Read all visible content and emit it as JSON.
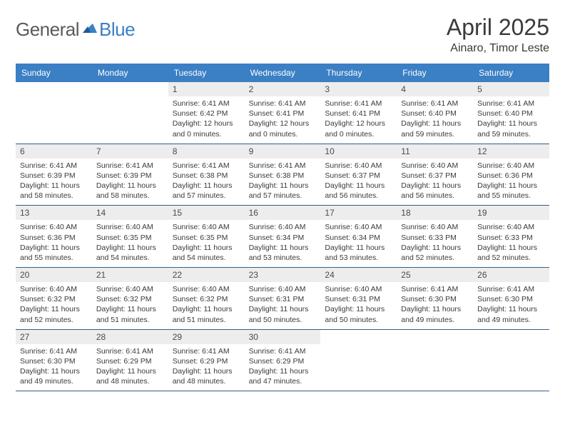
{
  "logo": {
    "general": "General",
    "blue": "Blue"
  },
  "title": "April 2025",
  "location": "Ainaro, Timor Leste",
  "colors": {
    "header_bg": "#3b7fc4",
    "header_text": "#ffffff",
    "daynum_bg": "#ededed",
    "text": "#3a3a3a",
    "week_divider": "#2f5f8f",
    "logo_gray": "#5a5a5a",
    "logo_blue": "#3b7fc4",
    "page_bg": "#ffffff"
  },
  "typography": {
    "title_fontsize": 32,
    "location_fontsize": 16,
    "dayname_fontsize": 12,
    "daynum_fontsize": 12,
    "cell_fontsize": 10.5
  },
  "daynames": [
    "Sunday",
    "Monday",
    "Tuesday",
    "Wednesday",
    "Thursday",
    "Friday",
    "Saturday"
  ],
  "weeks": [
    [
      null,
      null,
      {
        "n": "1",
        "sunrise": "Sunrise: 6:41 AM",
        "sunset": "Sunset: 6:42 PM",
        "daylight": "Daylight: 12 hours and 0 minutes."
      },
      {
        "n": "2",
        "sunrise": "Sunrise: 6:41 AM",
        "sunset": "Sunset: 6:41 PM",
        "daylight": "Daylight: 12 hours and 0 minutes."
      },
      {
        "n": "3",
        "sunrise": "Sunrise: 6:41 AM",
        "sunset": "Sunset: 6:41 PM",
        "daylight": "Daylight: 12 hours and 0 minutes."
      },
      {
        "n": "4",
        "sunrise": "Sunrise: 6:41 AM",
        "sunset": "Sunset: 6:40 PM",
        "daylight": "Daylight: 11 hours and 59 minutes."
      },
      {
        "n": "5",
        "sunrise": "Sunrise: 6:41 AM",
        "sunset": "Sunset: 6:40 PM",
        "daylight": "Daylight: 11 hours and 59 minutes."
      }
    ],
    [
      {
        "n": "6",
        "sunrise": "Sunrise: 6:41 AM",
        "sunset": "Sunset: 6:39 PM",
        "daylight": "Daylight: 11 hours and 58 minutes."
      },
      {
        "n": "7",
        "sunrise": "Sunrise: 6:41 AM",
        "sunset": "Sunset: 6:39 PM",
        "daylight": "Daylight: 11 hours and 58 minutes."
      },
      {
        "n": "8",
        "sunrise": "Sunrise: 6:41 AM",
        "sunset": "Sunset: 6:38 PM",
        "daylight": "Daylight: 11 hours and 57 minutes."
      },
      {
        "n": "9",
        "sunrise": "Sunrise: 6:41 AM",
        "sunset": "Sunset: 6:38 PM",
        "daylight": "Daylight: 11 hours and 57 minutes."
      },
      {
        "n": "10",
        "sunrise": "Sunrise: 6:40 AM",
        "sunset": "Sunset: 6:37 PM",
        "daylight": "Daylight: 11 hours and 56 minutes."
      },
      {
        "n": "11",
        "sunrise": "Sunrise: 6:40 AM",
        "sunset": "Sunset: 6:37 PM",
        "daylight": "Daylight: 11 hours and 56 minutes."
      },
      {
        "n": "12",
        "sunrise": "Sunrise: 6:40 AM",
        "sunset": "Sunset: 6:36 PM",
        "daylight": "Daylight: 11 hours and 55 minutes."
      }
    ],
    [
      {
        "n": "13",
        "sunrise": "Sunrise: 6:40 AM",
        "sunset": "Sunset: 6:36 PM",
        "daylight": "Daylight: 11 hours and 55 minutes."
      },
      {
        "n": "14",
        "sunrise": "Sunrise: 6:40 AM",
        "sunset": "Sunset: 6:35 PM",
        "daylight": "Daylight: 11 hours and 54 minutes."
      },
      {
        "n": "15",
        "sunrise": "Sunrise: 6:40 AM",
        "sunset": "Sunset: 6:35 PM",
        "daylight": "Daylight: 11 hours and 54 minutes."
      },
      {
        "n": "16",
        "sunrise": "Sunrise: 6:40 AM",
        "sunset": "Sunset: 6:34 PM",
        "daylight": "Daylight: 11 hours and 53 minutes."
      },
      {
        "n": "17",
        "sunrise": "Sunrise: 6:40 AM",
        "sunset": "Sunset: 6:34 PM",
        "daylight": "Daylight: 11 hours and 53 minutes."
      },
      {
        "n": "18",
        "sunrise": "Sunrise: 6:40 AM",
        "sunset": "Sunset: 6:33 PM",
        "daylight": "Daylight: 11 hours and 52 minutes."
      },
      {
        "n": "19",
        "sunrise": "Sunrise: 6:40 AM",
        "sunset": "Sunset: 6:33 PM",
        "daylight": "Daylight: 11 hours and 52 minutes."
      }
    ],
    [
      {
        "n": "20",
        "sunrise": "Sunrise: 6:40 AM",
        "sunset": "Sunset: 6:32 PM",
        "daylight": "Daylight: 11 hours and 52 minutes."
      },
      {
        "n": "21",
        "sunrise": "Sunrise: 6:40 AM",
        "sunset": "Sunset: 6:32 PM",
        "daylight": "Daylight: 11 hours and 51 minutes."
      },
      {
        "n": "22",
        "sunrise": "Sunrise: 6:40 AM",
        "sunset": "Sunset: 6:32 PM",
        "daylight": "Daylight: 11 hours and 51 minutes."
      },
      {
        "n": "23",
        "sunrise": "Sunrise: 6:40 AM",
        "sunset": "Sunset: 6:31 PM",
        "daylight": "Daylight: 11 hours and 50 minutes."
      },
      {
        "n": "24",
        "sunrise": "Sunrise: 6:40 AM",
        "sunset": "Sunset: 6:31 PM",
        "daylight": "Daylight: 11 hours and 50 minutes."
      },
      {
        "n": "25",
        "sunrise": "Sunrise: 6:41 AM",
        "sunset": "Sunset: 6:30 PM",
        "daylight": "Daylight: 11 hours and 49 minutes."
      },
      {
        "n": "26",
        "sunrise": "Sunrise: 6:41 AM",
        "sunset": "Sunset: 6:30 PM",
        "daylight": "Daylight: 11 hours and 49 minutes."
      }
    ],
    [
      {
        "n": "27",
        "sunrise": "Sunrise: 6:41 AM",
        "sunset": "Sunset: 6:30 PM",
        "daylight": "Daylight: 11 hours and 49 minutes."
      },
      {
        "n": "28",
        "sunrise": "Sunrise: 6:41 AM",
        "sunset": "Sunset: 6:29 PM",
        "daylight": "Daylight: 11 hours and 48 minutes."
      },
      {
        "n": "29",
        "sunrise": "Sunrise: 6:41 AM",
        "sunset": "Sunset: 6:29 PM",
        "daylight": "Daylight: 11 hours and 48 minutes."
      },
      {
        "n": "30",
        "sunrise": "Sunrise: 6:41 AM",
        "sunset": "Sunset: 6:29 PM",
        "daylight": "Daylight: 11 hours and 47 minutes."
      },
      null,
      null,
      null
    ]
  ]
}
